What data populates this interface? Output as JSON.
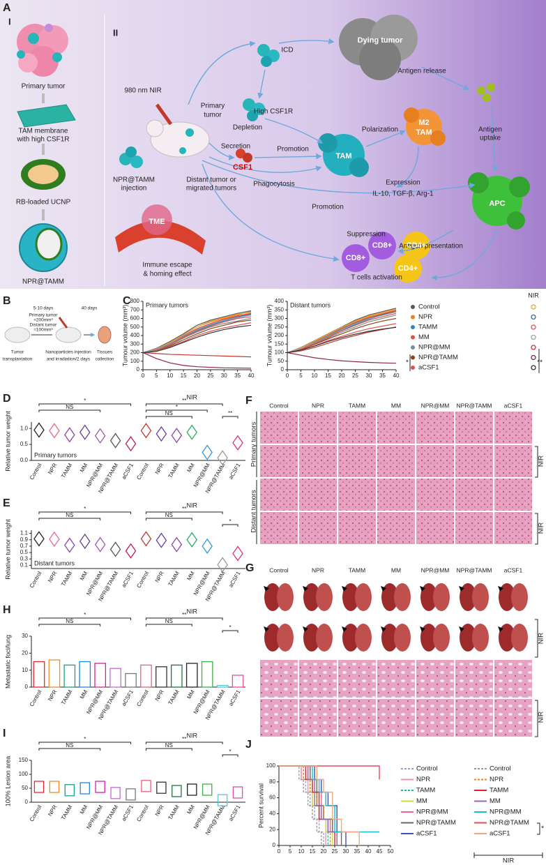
{
  "panel_letters": [
    "A",
    "B",
    "C",
    "D",
    "E",
    "F",
    "G",
    "H",
    "I",
    "J"
  ],
  "panel_a": {
    "sections": [
      "I",
      "II"
    ],
    "labels": [
      "Primary tumor",
      "TAM membrane",
      "with high CSF1R",
      "RB-loaded UCNP",
      "NPR@TAMM",
      "980 nm NIR",
      "Primary",
      "tumor",
      "NPR@TAMM",
      "injection",
      "Distant tumor or",
      "migrated tumors",
      "TME",
      "Immune escape",
      "& homing effect",
      "ICD",
      "High CSF1R",
      "Depletion",
      "Secretion",
      "CSF1",
      "Promotion",
      "TAM",
      "Phagocytosis",
      "Polarization",
      "M2",
      "TAM",
      "Dying tumor",
      "Antigen release",
      "Antigen",
      "uptake",
      "Expression",
      "IL-10, TGF-β, Arg-1",
      "Promotion",
      "APC",
      "Suppression",
      "Antigen presentation",
      "CD8+",
      "CD8+",
      "CD4+",
      "CD4+",
      "T cells activation"
    ]
  },
  "panel_b": {
    "labels": [
      "Tumor",
      "transplantation",
      "5-10 days",
      "Primary tumor",
      "≈200mm³",
      "Distant tumor",
      "≈100mm³",
      "Nanoparticles injection",
      "and irradiation/2 days",
      "40 days",
      "Tissues",
      "collection"
    ]
  },
  "chart_data": [
    {
      "type": "line",
      "annotation": "Primary tumors",
      "ylabel": "Tumour volume (mm³)",
      "nir_label": "NIR",
      "x": [
        0,
        5,
        10,
        15,
        20,
        25,
        30,
        35,
        40
      ],
      "xlim": [
        0,
        40
      ],
      "xticks": [
        0,
        5,
        10,
        15,
        20,
        25,
        30,
        35,
        40
      ],
      "ylim": [
        0,
        800
      ],
      "yticks": [
        0,
        100,
        200,
        300,
        400,
        500,
        600,
        700,
        800
      ],
      "series": [
        {
          "name": "Control",
          "color": "#555555",
          "values": [
            200,
            250,
            330,
            420,
            520,
            580,
            620,
            660,
            690
          ]
        },
        {
          "name": "NPR",
          "color": "#e67e22",
          "values": [
            200,
            240,
            320,
            410,
            500,
            560,
            600,
            640,
            680
          ]
        },
        {
          "name": "TAMM",
          "color": "#2e86c1",
          "values": [
            200,
            230,
            300,
            380,
            460,
            520,
            570,
            610,
            640
          ]
        },
        {
          "name": "MM",
          "color": "#e74c3c",
          "values": [
            200,
            240,
            310,
            400,
            480,
            540,
            590,
            630,
            660
          ]
        },
        {
          "name": "NPR@MM",
          "color": "#7f8c8d",
          "values": [
            200,
            230,
            290,
            370,
            440,
            500,
            540,
            570,
            600
          ]
        },
        {
          "name": "NPR@TAMM",
          "color": "#8b4513",
          "values": [
            200,
            220,
            280,
            350,
            420,
            480,
            520,
            560,
            580
          ]
        },
        {
          "name": "aCSF1",
          "color": "#d9534f",
          "values": [
            200,
            220,
            270,
            330,
            400,
            450,
            490,
            520,
            550
          ]
        },
        {
          "color": "#f0a030",
          "values": [
            200,
            245,
            320,
            410,
            500,
            570,
            610,
            650,
            670
          ]
        },
        {
          "color": "#2e6da4",
          "values": [
            200,
            240,
            310,
            390,
            470,
            530,
            580,
            620,
            650
          ]
        },
        {
          "color": "#e05050",
          "values": [
            200,
            235,
            300,
            380,
            450,
            510,
            560,
            600,
            620
          ]
        },
        {
          "color": "#95a5a6",
          "values": [
            200,
            240,
            310,
            395,
            470,
            530,
            580,
            610,
            640
          ]
        },
        {
          "color": "#c0392b",
          "values": [
            200,
            190,
            180,
            175,
            170,
            165,
            160,
            155,
            150
          ]
        },
        {
          "color": "#8b2252",
          "values": [
            200,
            130,
            80,
            50,
            35,
            28,
            22,
            20,
            18
          ]
        },
        {
          "color": "#333333",
          "values": [
            200,
            215,
            260,
            320,
            380,
            430,
            470,
            500,
            520
          ]
        }
      ]
    },
    {
      "type": "line",
      "annotation": "Distant tumors",
      "ylabel": "Tumour volume (mm³)",
      "significance": [
        "*",
        "**"
      ],
      "x": [
        0,
        5,
        10,
        15,
        20,
        25,
        30,
        35,
        40
      ],
      "xlim": [
        0,
        40
      ],
      "xticks": [
        0,
        5,
        10,
        15,
        20,
        25,
        30,
        35,
        40
      ],
      "ylim": [
        0,
        400
      ],
      "yticks": [
        0,
        50,
        100,
        150,
        200,
        250,
        300,
        350,
        400
      ],
      "series": [
        {
          "color": "#555555",
          "values": [
            100,
            130,
            170,
            210,
            250,
            290,
            320,
            340,
            360
          ]
        },
        {
          "color": "#e67e22",
          "values": [
            100,
            125,
            165,
            205,
            245,
            280,
            310,
            330,
            350
          ]
        },
        {
          "color": "#2e86c1",
          "values": [
            100,
            120,
            155,
            195,
            230,
            265,
            295,
            320,
            340
          ]
        },
        {
          "color": "#e74c3c",
          "values": [
            100,
            125,
            160,
            200,
            240,
            275,
            305,
            325,
            345
          ]
        },
        {
          "color": "#7f8c8d",
          "values": [
            100,
            120,
            150,
            185,
            220,
            250,
            280,
            300,
            320
          ]
        },
        {
          "color": "#8b4513",
          "values": [
            100,
            118,
            148,
            180,
            210,
            240,
            265,
            285,
            300
          ]
        },
        {
          "color": "#d9534f",
          "values": [
            100,
            115,
            140,
            170,
            195,
            220,
            240,
            255,
            270
          ]
        },
        {
          "color": "#f0a030",
          "values": [
            100,
            128,
            168,
            208,
            248,
            285,
            315,
            335,
            355
          ]
        },
        {
          "color": "#2e6da4",
          "values": [
            100,
            122,
            160,
            198,
            238,
            272,
            300,
            322,
            340
          ]
        },
        {
          "color": "#e05050",
          "values": [
            100,
            120,
            152,
            190,
            228,
            260,
            290,
            310,
            330
          ]
        },
        {
          "color": "#95a5a6",
          "values": [
            100,
            124,
            158,
            196,
            236,
            270,
            298,
            318,
            338
          ]
        },
        {
          "color": "#c0392b",
          "values": [
            100,
            110,
            130,
            155,
            180,
            200,
            220,
            235,
            250
          ]
        },
        {
          "color": "#8b2252",
          "values": [
            100,
            85,
            70,
            60,
            52,
            47,
            43,
            40,
            38
          ]
        },
        {
          "color": "#333333",
          "values": [
            100,
            115,
            138,
            165,
            188,
            208,
            225,
            238,
            248
          ]
        }
      ]
    },
    {
      "type": "violin",
      "ylabel": "Relative tumor weight",
      "annotation": "Primary tumors",
      "group_label": "NIR",
      "significance": [
        "*",
        "NS",
        "**",
        "*",
        "NS",
        "**"
      ],
      "categories": [
        "Control",
        "NPR",
        "TAMM",
        "MM",
        "NPR@MM",
        "NPR@TAMM",
        "aCSF1",
        "Control",
        "NPR",
        "TAMM",
        "MM",
        "NPR@MM",
        "NPR@TAMM",
        "aCSF1"
      ],
      "values": [
        0.95,
        0.93,
        0.8,
        0.88,
        0.77,
        0.62,
        0.52,
        0.93,
        0.83,
        0.78,
        0.88,
        0.25,
        0.08,
        0.55
      ],
      "colors": [
        "#222222",
        "#e36b8d",
        "#8e44ad",
        "#6a3d9a",
        "#9b59b6",
        "#555555",
        "#c2185b",
        "#c0392b",
        "#6a3d9a",
        "#8e44ad",
        "#27ae60",
        "#3498db",
        "#999999",
        "#d63384"
      ],
      "ylim": [
        0,
        1.2
      ],
      "yticks": [
        {
          "value": 0,
          "label": "0.0"
        },
        {
          "value": 0.5,
          "label": "0.5"
        },
        {
          "value": 1,
          "label": "1.0"
        }
      ]
    },
    {
      "type": "violin",
      "ylabel": "Relative tumor weight",
      "annotation": "Distant tumors",
      "group_label": "NIR",
      "significance": [
        "*",
        "NS",
        "**",
        "NS",
        "*"
      ],
      "categories": [
        "Control",
        "NPR",
        "TAMM",
        "MM",
        "NPR@MM",
        "NPR@TAMM",
        "aCSF1",
        "Control",
        "NPR",
        "TAMM",
        "MM",
        "NPR@MM",
        "NPR@TAMM",
        "aCSF1"
      ],
      "values": [
        0.93,
        0.92,
        0.73,
        0.85,
        0.75,
        0.6,
        0.55,
        0.93,
        0.88,
        0.75,
        0.9,
        0.7,
        0.12,
        0.47
      ],
      "colors": [
        "#222222",
        "#e36b8d",
        "#8e44ad",
        "#6a3d9a",
        "#9b59b6",
        "#555555",
        "#c2185b",
        "#c0392b",
        "#6a3d9a",
        "#8e44ad",
        "#27ae60",
        "#3498db",
        "#999999",
        "#d63384"
      ],
      "ylim": [
        0,
        1.2
      ],
      "yticks": [
        0.1,
        0.3,
        0.5,
        0.7,
        0.9,
        1.1
      ]
    },
    {
      "type": "bar",
      "ylabel": "Metastatic foci/lung",
      "group_label": "NIR",
      "significance": [
        "*",
        "NS",
        "**",
        "NS",
        "*"
      ],
      "categories": [
        "Control",
        "NPR",
        "TAMM",
        "MM",
        "NPR@MM",
        "NPR@TAMM",
        "aCSF1",
        "Control",
        "NPR",
        "TAMM",
        "MM",
        "NPR@MM",
        "NPR@TAMM",
        "aCSF1"
      ],
      "values": [
        15,
        16,
        13,
        15,
        14,
        11,
        8,
        13,
        12,
        13,
        14,
        15,
        1,
        7
      ],
      "colors": [
        "#e32636",
        "#f28c28",
        "#16a085",
        "#1e88e5",
        "#d81b9f",
        "#c06cd8",
        "#777777",
        "#ef5f7a",
        "#333333",
        "#1b7a3a",
        "#222222",
        "#3cb043",
        "#5bc0de",
        "#e44f9b"
      ],
      "ylim": [
        0,
        30
      ],
      "yticks": [
        0,
        10,
        20,
        30
      ]
    },
    {
      "type": "box",
      "ylabel": "100% Lesion area",
      "group_label": "NIR",
      "significance": [
        "*",
        "NS",
        "**",
        "NS",
        "*"
      ],
      "categories": [
        "Control",
        "NPR",
        "TAMM",
        "MM",
        "NPR@MM",
        "NPR@TAMM",
        "aCSF1",
        "Control",
        "NPR",
        "TAMM",
        "MM",
        "NPR@MM",
        "NPR@TAMM",
        "aCSF1"
      ],
      "values": [
        55,
        55,
        43,
        50,
        55,
        33,
        28,
        58,
        52,
        40,
        45,
        45,
        7,
        35
      ],
      "colors": [
        "#e32636",
        "#f28c28",
        "#16a085",
        "#1e88e5",
        "#d81b9f",
        "#c06cd8",
        "#777777",
        "#ef5f7a",
        "#333333",
        "#1b7a3a",
        "#222222",
        "#3cb043",
        "#5bc0de",
        "#e44f9b"
      ],
      "ylim": [
        0,
        150
      ],
      "yticks": [
        0,
        50,
        100,
        150
      ]
    },
    {
      "type": "survival",
      "ylabel": "Percent survival",
      "group_label": "NIR",
      "significance": [
        "*"
      ],
      "xlim": [
        0,
        50
      ],
      "xticks": [
        0,
        5,
        10,
        15,
        20,
        25,
        30,
        35,
        40,
        45,
        50
      ],
      "ylim": [
        0,
        100
      ],
      "yticks": [
        0,
        20,
        40,
        60,
        80,
        100
      ],
      "series": [
        {
          "name": "Control",
          "color": "#a0a0c0",
          "dashed": true,
          "x": [
            0,
            10,
            12,
            14,
            16,
            18,
            20
          ],
          "values": [
            100,
            83,
            67,
            50,
            33,
            17,
            0
          ]
        },
        {
          "name": "NPR",
          "color": "#f48fb1",
          "x": [
            0,
            10,
            13,
            15,
            18,
            21
          ],
          "values": [
            100,
            83,
            67,
            50,
            33,
            0
          ]
        },
        {
          "name": "TAMM",
          "color": "#1abc9c",
          "dashed": true,
          "x": [
            0,
            11,
            14,
            17,
            20,
            22
          ],
          "values": [
            100,
            83,
            67,
            50,
            33,
            0
          ]
        },
        {
          "name": "MM",
          "color": "#cddc39",
          "x": [
            0,
            12,
            15,
            18,
            21,
            24
          ],
          "values": [
            100,
            83,
            50,
            33,
            17,
            0
          ]
        },
        {
          "name": "NPR@MM",
          "color": "#f06292",
          "x": [
            0,
            13,
            16,
            19,
            23,
            26
          ],
          "values": [
            100,
            83,
            67,
            33,
            17,
            0
          ]
        },
        {
          "name": "NPR@TAMM",
          "color": "#666666",
          "x": [
            0,
            14,
            17,
            20,
            24,
            28
          ],
          "values": [
            100,
            83,
            50,
            33,
            17,
            0
          ]
        },
        {
          "name": "aCSF1",
          "color": "#3f51b5",
          "x": [
            0,
            16,
            19,
            22,
            26,
            30
          ],
          "values": [
            100,
            83,
            67,
            50,
            17,
            0
          ]
        },
        {
          "name": "Control",
          "color": "#999999",
          "dashed": true,
          "x": [
            0,
            9,
            11,
            13,
            15,
            17,
            19
          ],
          "values": [
            100,
            83,
            67,
            50,
            33,
            17,
            0
          ]
        },
        {
          "name": "NPR",
          "color": "#ff7f0e",
          "dashed": true,
          "x": [
            0,
            11,
            14,
            17,
            20,
            23
          ],
          "values": [
            100,
            83,
            67,
            50,
            33,
            0
          ]
        },
        {
          "name": "TAMM",
          "color": "#d62728",
          "x": [
            0,
            12,
            15,
            18,
            22,
            25
          ],
          "values": [
            100,
            83,
            67,
            33,
            17,
            0
          ]
        },
        {
          "name": "MM",
          "color": "#9467bd",
          "x": [
            0,
            13,
            16,
            19,
            22,
            26
          ],
          "values": [
            100,
            83,
            50,
            33,
            17,
            0
          ]
        },
        {
          "name": "NPR@MM",
          "color": "#17becf",
          "x": [
            0,
            15,
            18,
            21,
            25,
            45
          ],
          "values": [
            100,
            83,
            67,
            50,
            17,
            17
          ]
        },
        {
          "name": "NPR@TAMM",
          "color": "#e84a5f",
          "x": [
            0,
            42,
            45
          ],
          "values": [
            100,
            100,
            83
          ]
        },
        {
          "name": "aCSF1",
          "color": "#f4a582",
          "x": [
            0,
            17,
            20,
            24,
            28,
            36
          ],
          "values": [
            100,
            83,
            67,
            33,
            17,
            0
          ]
        }
      ]
    }
  ],
  "panel_f": {
    "columns": [
      "Control",
      "NPR",
      "TAMM",
      "MM",
      "NPR@MM",
      "NPR@TAMM",
      "aCSF1"
    ],
    "rows": [
      "Primary tumors",
      "Distant tumors"
    ],
    "nir": "NIR"
  },
  "panel_g": {
    "columns": [
      "Control",
      "NPR",
      "TAMM",
      "MM",
      "NPR@MM",
      "NPR@TAMM",
      "aCSF1"
    ],
    "nir": "NIR"
  }
}
